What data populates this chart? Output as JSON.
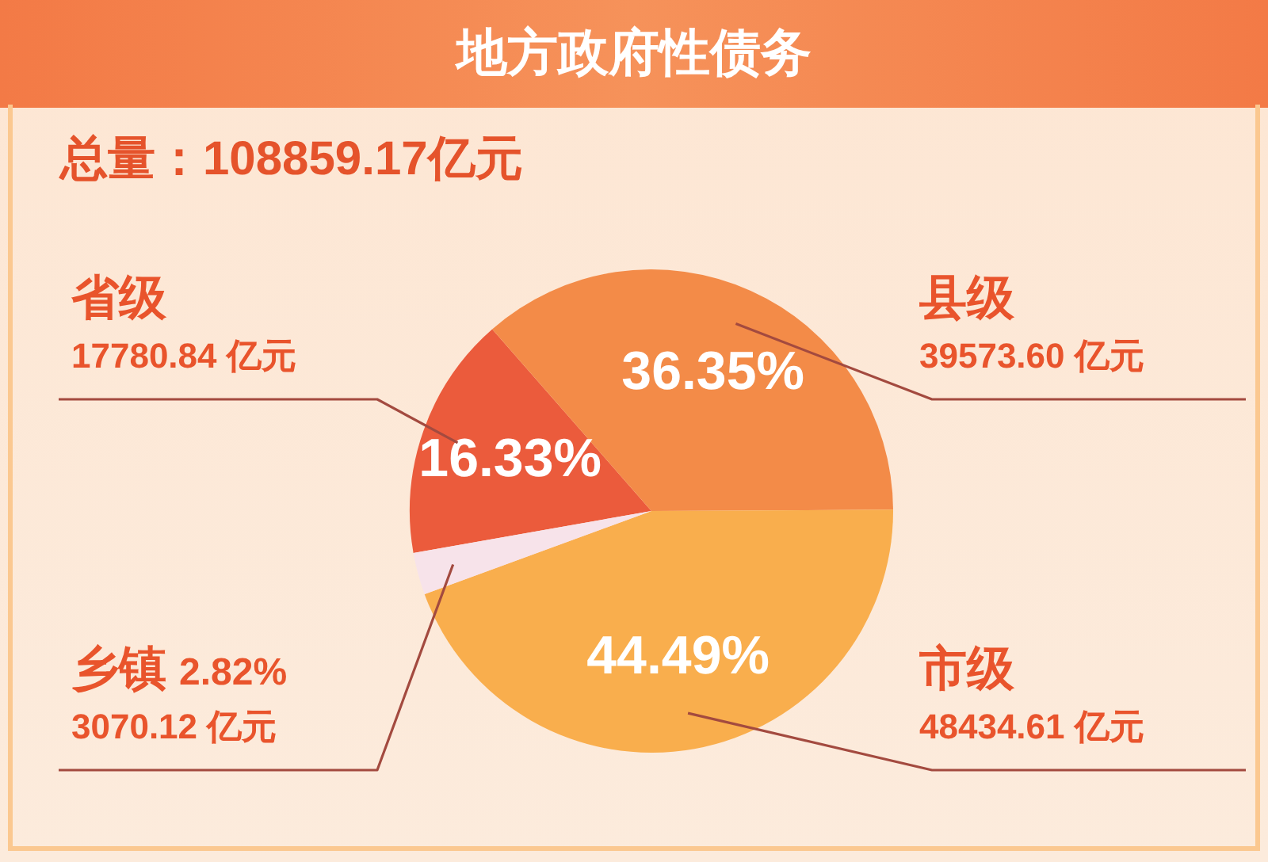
{
  "chart_data": {
    "type": "pie",
    "title": "地方政府性债务",
    "subtitle": "总量：108859.17亿元",
    "categories": [
      "省级",
      "县级",
      "市级",
      "乡镇"
    ],
    "values": [
      17780.84,
      39573.6,
      48434.61,
      3070.12
    ],
    "colors": [
      "#eb5b3c",
      "#f38b48",
      "#f9ae4d",
      "#f7e3ea"
    ],
    "value_labels": [
      "17780.84 亿元",
      "39573.60 亿元",
      "48434.61 亿元",
      "3070.12 亿元"
    ],
    "annotations": [
      "16.33%",
      "36.35%",
      "44.49%",
      "2.82%"
    ]
  }
}
